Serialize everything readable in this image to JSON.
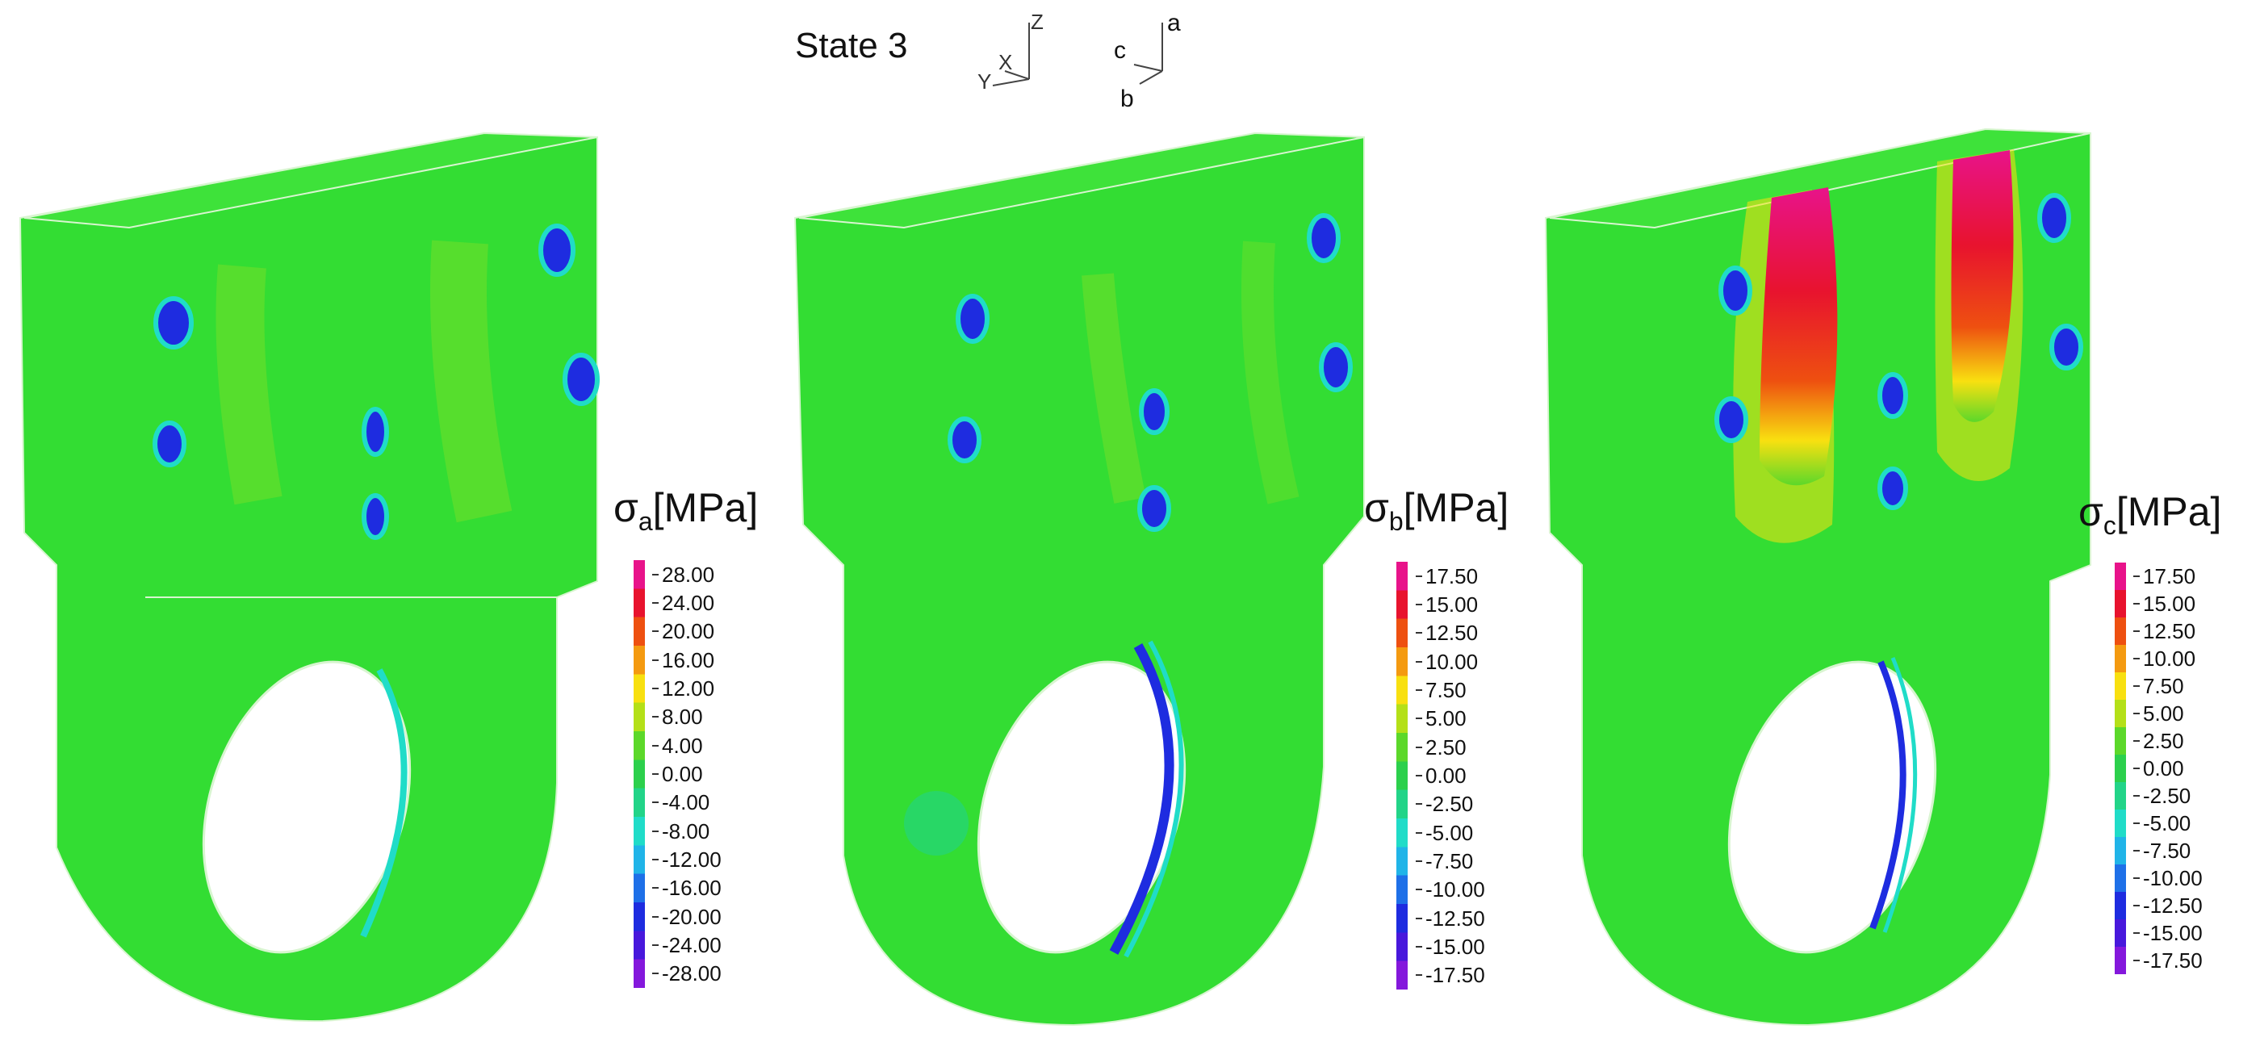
{
  "title": "State 3",
  "global_axes": {
    "z": "Z",
    "x": "X",
    "y": "Y"
  },
  "local_axes": {
    "a": "a",
    "b": "b",
    "c": "c"
  },
  "panels": [
    {
      "symbol": "σ",
      "sub": "a",
      "unit": "[MPa]",
      "ticks": [
        "28.00",
        "24.00",
        "20.00",
        "16.00",
        "12.00",
        "8.00",
        "4.00",
        "0.00",
        "-4.00",
        "-8.00",
        "-12.00",
        "-16.00",
        "-20.00",
        "-24.00",
        "-28.00"
      ]
    },
    {
      "symbol": "σ",
      "sub": "b",
      "unit": "[MPa]",
      "ticks": [
        "17.50",
        "15.00",
        "12.50",
        "10.00",
        "7.50",
        "5.00",
        "2.50",
        "0.00",
        "-2.50",
        "-5.00",
        "-7.50",
        "-10.00",
        "-12.50",
        "-15.00",
        "-17.50"
      ]
    },
    {
      "symbol": "σ",
      "sub": "c",
      "unit": "[MPa]",
      "ticks": [
        "17.50",
        "15.00",
        "12.50",
        "10.00",
        "7.50",
        "5.00",
        "2.50",
        "0.00",
        "-2.50",
        "-5.00",
        "-7.50",
        "-10.00",
        "-12.50",
        "-15.00",
        "-17.50"
      ]
    }
  ],
  "colors": {
    "part_green": "#33dd33",
    "part_edge": "#d8f5d0",
    "colormap": [
      "#e8138a",
      "#e8132e",
      "#ee5010",
      "#f49a10",
      "#f8e010",
      "#b4e018",
      "#5cd82a",
      "#2cd04c",
      "#22d488",
      "#20dcc8",
      "#20b4e8",
      "#1e70e8",
      "#1e2ce0",
      "#4818dc",
      "#8418dc"
    ]
  }
}
